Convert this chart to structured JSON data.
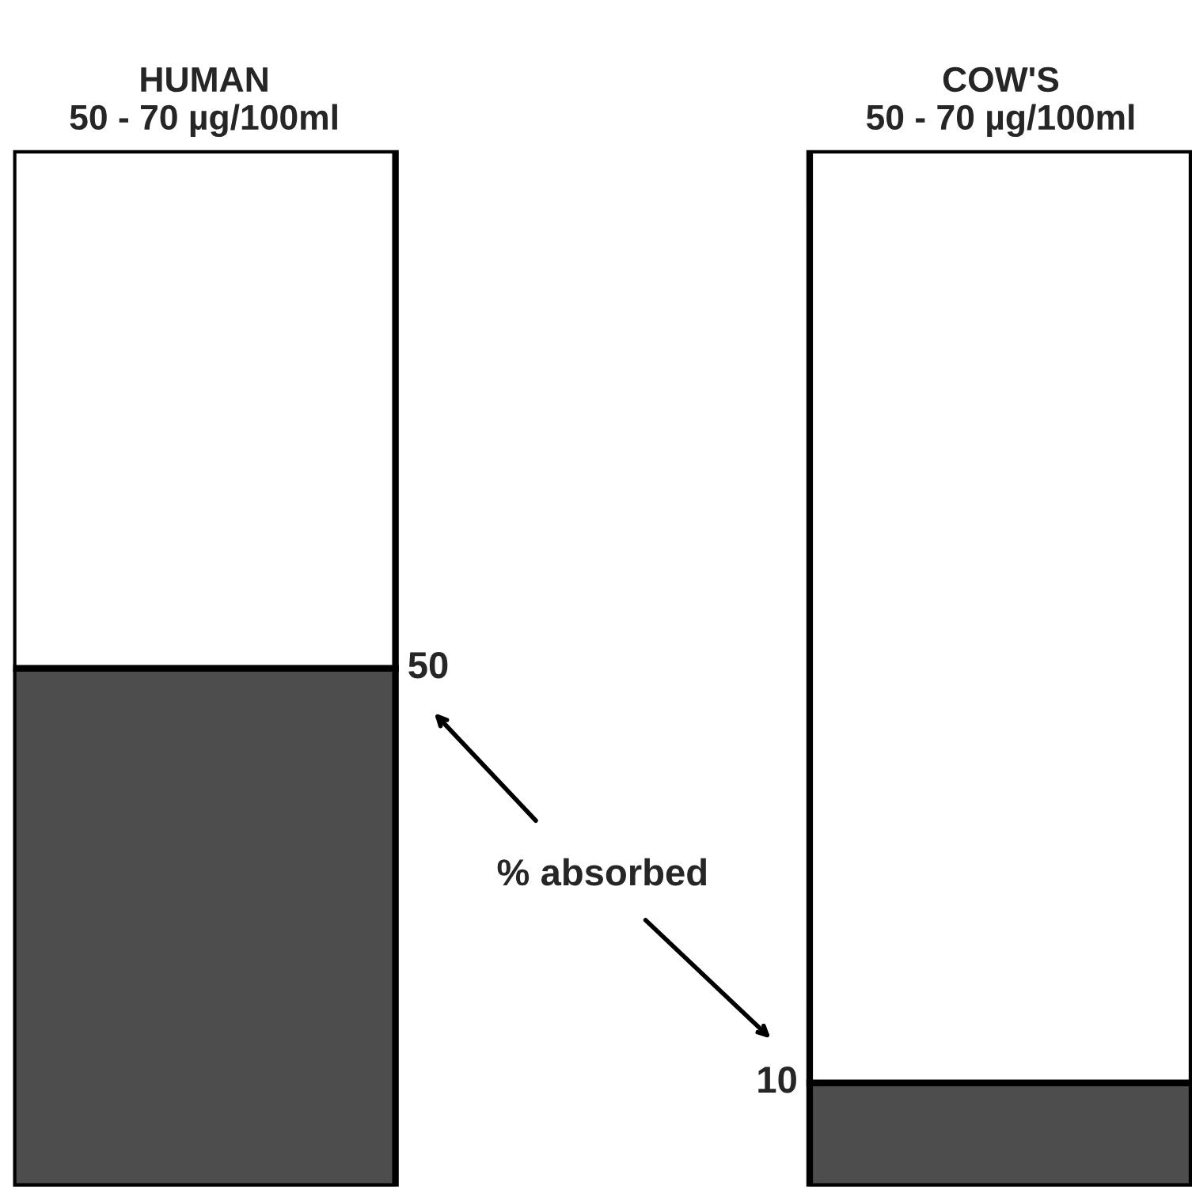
{
  "chart_data": {
    "type": "bar",
    "stacked": true,
    "categories": [
      "HUMAN\n50 - 70 µg/100ml",
      "COW'S\n50 - 70 µg/100ml"
    ],
    "series": [
      {
        "color": "#4d4d4d",
        "values": [
          50,
          10
        ],
        "value_labels": [
          "50",
          "10"
        ]
      },
      {
        "color": "#ffffff",
        "values": [
          50,
          90
        ]
      }
    ],
    "ylim": [
      0,
      100
    ],
    "tick_labels": "x",
    "annotations": [
      "% absorbed"
    ],
    "legend": false,
    "grid": false
  }
}
